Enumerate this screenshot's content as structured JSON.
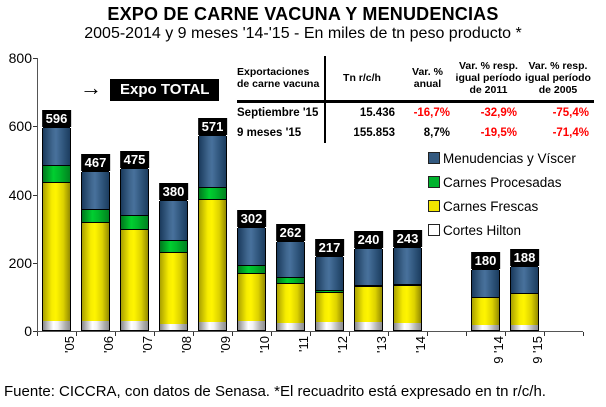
{
  "title": "EXPO DE CARNE VACUNA Y MENUDENCIAS",
  "subtitle": "2005-2014 y 9 meses '14-'15 - En miles de tn peso producto *",
  "annotation": {
    "arrow": "→",
    "label": "Expo TOTAL"
  },
  "footer": "Fuente: CICCRA, con datos de Senasa. *El recuadrito está expresado en tn r/c/h.",
  "colors": {
    "menudencias": "#33597f",
    "procesadas": "#00b22d",
    "frescas": "#f2e600",
    "hilton": "#ffffff",
    "negative_text": "#ff0000",
    "total_box_bg": "#000000"
  },
  "legend": [
    {
      "label": "Menudencias y Víscer",
      "key": "menudencias"
    },
    {
      "label": "Carnes Procesadas",
      "key": "procesadas"
    },
    {
      "label": "Carnes Frescas",
      "key": "frescas"
    },
    {
      "label": "Cortes Hilton",
      "key": "hilton"
    }
  ],
  "table": {
    "headers": [
      "Exportaciones\nde carne vacuna",
      "Tn r/c/h",
      "Var. %\nanual",
      "Var. % resp.\nigual período\nde 2011",
      "Var. % resp.\nigual período\nde 2005"
    ],
    "rows": [
      {
        "cells": [
          "Septiembre '15",
          "15.436",
          "-16,7%",
          "-32,9%",
          "-75,4%"
        ],
        "red": [
          false,
          false,
          true,
          true,
          true
        ]
      },
      {
        "cells": [
          "9 meses '15",
          "155.853",
          "8,7%",
          "-19,5%",
          "-71,4%"
        ],
        "red": [
          false,
          false,
          false,
          true,
          true
        ]
      }
    ]
  },
  "chart_data": {
    "type": "bar",
    "stacked": true,
    "title": "EXPO DE CARNE VACUNA Y MENUDENCIAS",
    "ylabel": "miles de tn peso producto",
    "ylim": [
      0,
      800
    ],
    "yticks": [
      0,
      200,
      400,
      600,
      800
    ],
    "grid": false,
    "legend_position": "right",
    "categories": [
      "'05",
      "'06",
      "'07",
      "'08",
      "'09",
      "'10",
      "'11",
      "'12",
      "'13",
      "'14",
      "9 '14",
      "9 '15"
    ],
    "slots": [
      0,
      1,
      2,
      3,
      4,
      5,
      6,
      7,
      8,
      9,
      11,
      12
    ],
    "num_slots": 14,
    "totals": [
      596,
      467,
      475,
      380,
      571,
      302,
      262,
      217,
      240,
      243,
      180,
      188
    ],
    "series": [
      {
        "name": "Cortes Hilton",
        "key": "hilton",
        "values": [
          27,
          26,
          27,
          19,
          22,
          26,
          20,
          22,
          22,
          20,
          16,
          16
        ],
        "labels": [
          "27",
          "26",
          "27",
          "19",
          "22",
          "26",
          "20",
          "22",
          "22",
          "20",
          null,
          null
        ]
      },
      {
        "name": "Carnes Frescas",
        "key": "frescas",
        "values": [
          406,
          291,
          270,
          211,
          361,
          141,
          118,
          88,
          106,
          113,
          82,
          92
        ],
        "labels": [
          "406",
          "291",
          "270",
          "211",
          "361",
          "141",
          "118",
          "88",
          "106",
          "113",
          "82",
          "92"
        ]
      },
      {
        "name": "Carnes Procesadas",
        "key": "procesadas",
        "values": [
          50,
          37,
          39,
          35,
          36,
          24,
          18,
          7,
          4,
          2,
          0,
          0
        ],
        "labels": [
          null,
          null,
          null,
          null,
          null,
          null,
          null,
          null,
          null,
          null,
          null,
          null
        ]
      },
      {
        "name": "Menudencias y Víscer",
        "key": "menudencias",
        "values": [
          113,
          113,
          139,
          115,
          152,
          111,
          106,
          100,
          108,
          108,
          82,
          80
        ],
        "labels": [
          "113",
          "113",
          "139",
          "115",
          "152",
          "111",
          "106",
          "100",
          "108",
          "108",
          "82",
          "80"
        ]
      }
    ]
  }
}
